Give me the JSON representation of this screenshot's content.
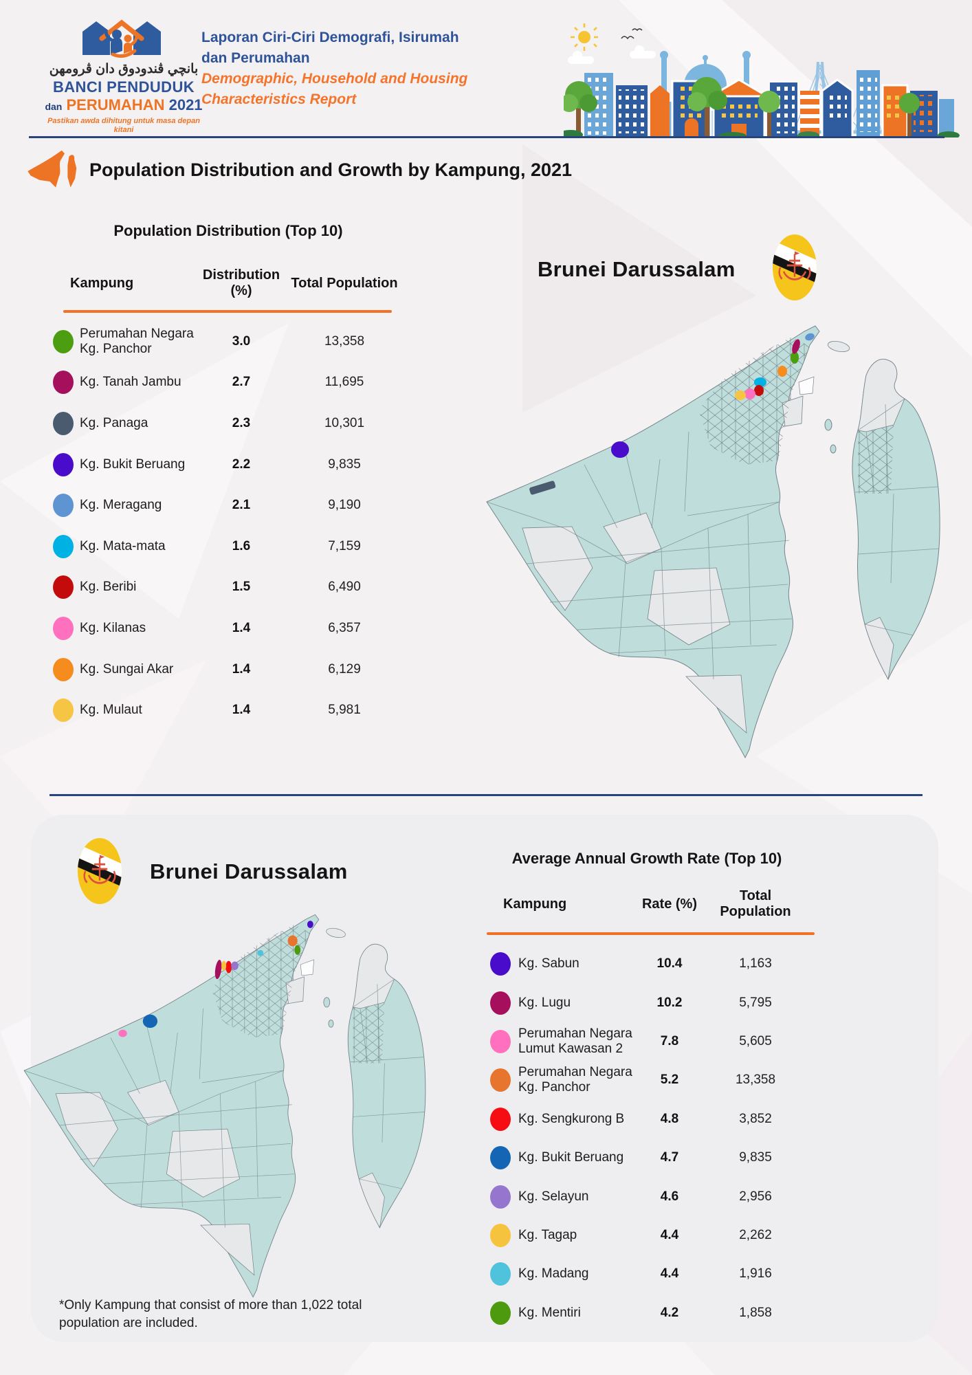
{
  "page": {
    "background": "#f4f1f3",
    "card_background": "#eeedef",
    "divider_color": "#27457c",
    "accent_orange": "#f07226",
    "text_color": "#1d1d1f"
  },
  "header": {
    "logo": {
      "arabic_title": "بانچي ڤندودوق دان ڤرومهن",
      "title_line1": "BANCI PENDUDUK",
      "title_line2_prefix": "dan",
      "title_line2_main": "PERUMAHAN",
      "title_line2_year": "2021",
      "tagline": "Pastikan awda dihitung untuk masa depan kitani"
    },
    "report_title_malay_line1": "Laporan Ciri-Ciri Demografi, Isirumah",
    "report_title_malay_line2": "dan Perumahan",
    "report_title_english_line1": "Demographic, Household and Housing",
    "report_title_english_line2": "Characteristics Report"
  },
  "section": {
    "title": "Population Distribution and Growth by Kampung, 2021"
  },
  "distribution_table": {
    "title": "Population Distribution (Top 10)",
    "columns": [
      "Kampung",
      "Distribution (%)",
      "Total Population"
    ],
    "rows": [
      {
        "kampung": "Perumahan Negara Kg. Panchor",
        "value": "3.0",
        "population": "13,358",
        "color": "#4c9d10"
      },
      {
        "kampung": "Kg. Tanah Jambu",
        "value": "2.7",
        "population": "11,695",
        "color": "#a50f5c"
      },
      {
        "kampung": "Kg. Panaga",
        "value": "2.3",
        "population": "10,301",
        "color": "#4a5b70"
      },
      {
        "kampung": "Kg. Bukit Beruang",
        "value": "2.2",
        "population": "9,835",
        "color": "#4a0ccb"
      },
      {
        "kampung": "Kg. Meragang",
        "value": "2.1",
        "population": "9,190",
        "color": "#5f94d2"
      },
      {
        "kampung": "Kg. Mata-mata",
        "value": "1.6",
        "population": "7,159",
        "color": "#00b2e3"
      },
      {
        "kampung": "Kg. Beribi",
        "value": "1.5",
        "population": "6,490",
        "color": "#c30b0b"
      },
      {
        "kampung": "Kg. Kilanas",
        "value": "1.4",
        "population": "6,357",
        "color": "#ff70bf"
      },
      {
        "kampung": "Kg. Sungai Akar",
        "value": "1.4",
        "population": "6,129",
        "color": "#f78c1e"
      },
      {
        "kampung": "Kg. Mulaut",
        "value": "1.4",
        "population": "5,981",
        "color": "#f7c544"
      }
    ]
  },
  "growth_table": {
    "title": "Average Annual Growth Rate (Top 10)",
    "columns": [
      "Kampung",
      "Rate (%)",
      "Total Population"
    ],
    "rows": [
      {
        "kampung": "Kg. Sabun",
        "value": "10.4",
        "population": "1,163",
        "color": "#4a0ccb"
      },
      {
        "kampung": "Kg. Lugu",
        "value": "10.2",
        "population": "5,795",
        "color": "#a50f5c"
      },
      {
        "kampung": "Perumahan Negara Lumut Kawasan 2",
        "value": "7.8",
        "population": "5,605",
        "color": "#ff70bf"
      },
      {
        "kampung": "Perumahan Negara Kg. Panchor",
        "value": "5.2",
        "population": "13,358",
        "color": "#e8752d"
      },
      {
        "kampung": "Kg. Sengkurong B",
        "value": "4.8",
        "population": "3,852",
        "color": "#f60d13"
      },
      {
        "kampung": "Kg. Bukit Beruang",
        "value": "4.7",
        "population": "9,835",
        "color": "#1565b5"
      },
      {
        "kampung": "Kg. Selayun",
        "value": "4.6",
        "population": "2,956",
        "color": "#9575cd"
      },
      {
        "kampung": "Kg. Tagap",
        "value": "4.4",
        "population": "2,262",
        "color": "#f6c33e"
      },
      {
        "kampung": "Kg. Madang",
        "value": "4.4",
        "population": "1,916",
        "color": "#4fc3dc"
      },
      {
        "kampung": "Kg. Mentiri",
        "value": "4.2",
        "population": "1,858",
        "color": "#4e9a0e"
      }
    ]
  },
  "map_top": {
    "title": "Brunei Darussalam"
  },
  "map_bottom": {
    "title": "Brunei Darussalam"
  },
  "maps": {
    "land_color": "#bfdedb",
    "region_alt_color": "#e6e8e9",
    "border_color": "#74848b"
  },
  "flag_colors": {
    "field": "#f5c51c",
    "stripe_white": "#ffffff",
    "stripe_black": "#141414",
    "emblem_red": "#dd4f3f"
  },
  "icons": {
    "brunei_flag": "brunei-flag-icon",
    "brunei_map": "brunei-map-icon",
    "census_logo": "census-logo-emblem",
    "cityscape": "cityscape-illustration"
  },
  "footnote": "*Only Kampung that consist of more than 1,022 total population are included."
}
